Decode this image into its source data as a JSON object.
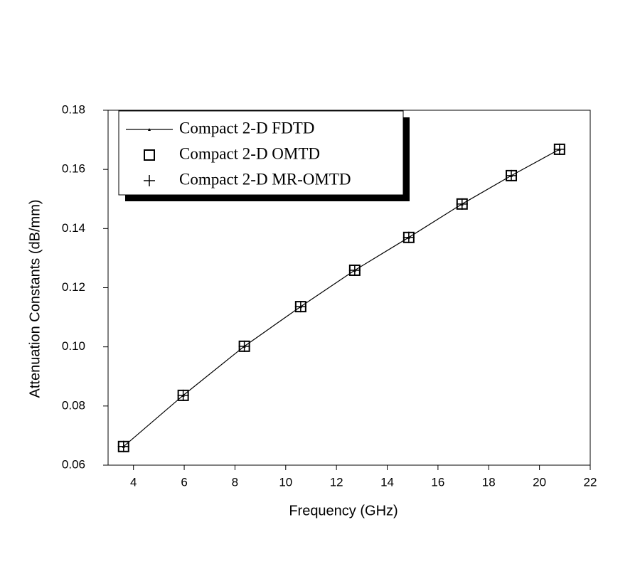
{
  "chart_data": {
    "type": "line",
    "x_label": "Frequency (GHz)",
    "y_label": "Attenuation Constants (dB/mm)",
    "x": [
      3.61,
      5.96,
      8.37,
      10.59,
      12.72,
      14.85,
      16.95,
      18.89,
      20.79
    ],
    "series": [
      {
        "name": "Compact 2-D FDTD",
        "color": "#000000",
        "marker": "line",
        "values": [
          0.0663,
          0.0836,
          0.1002,
          0.1136,
          0.1259,
          0.137,
          0.1483,
          0.1579,
          0.1668
        ]
      },
      {
        "name": "Compact 2-D OMTD",
        "color": "#000000",
        "marker": "square",
        "values": [
          0.0663,
          0.0836,
          0.1002,
          0.1136,
          0.1259,
          0.137,
          0.1483,
          0.1579,
          0.1668
        ]
      },
      {
        "name": "Compact 2-D MR-OMTD",
        "color": "#000000",
        "marker": "plus",
        "values": [
          0.0663,
          0.0836,
          0.1002,
          0.1136,
          0.1259,
          0.137,
          0.1483,
          0.1579,
          0.1668
        ]
      }
    ],
    "xlim": [
      3,
      22
    ],
    "xticks": [
      4,
      6,
      8,
      10,
      12,
      14,
      16,
      18,
      20,
      22
    ],
    "ylim": [
      0.06,
      0.18
    ],
    "yticks": [
      0.06,
      0.08,
      {
        "value": 0.1,
        "label": "0.10"
      },
      0.12,
      0.14,
      0.16,
      0.18
    ],
    "grid": false,
    "legend": "upper left"
  }
}
